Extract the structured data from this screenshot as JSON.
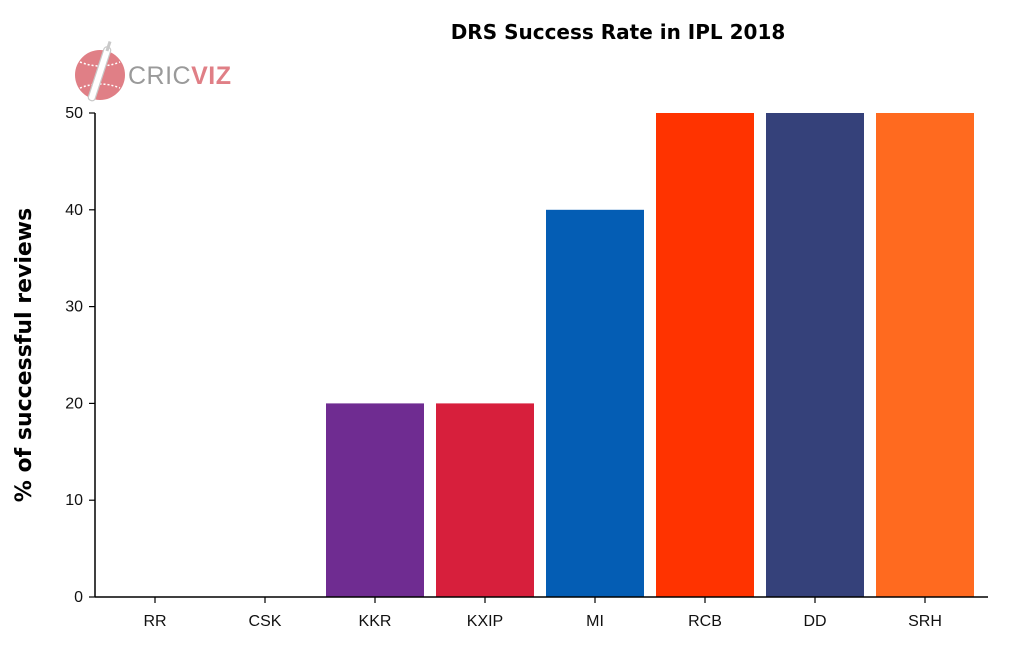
{
  "chart_data": {
    "type": "bar",
    "title": "DRS Success Rate in IPL 2018",
    "xlabel": "",
    "ylabel": "% of successful reviews",
    "ylim": [
      0,
      50
    ],
    "yticks": [
      0,
      10,
      20,
      30,
      40,
      50
    ],
    "categories": [
      "RR",
      "CSK",
      "KKR",
      "KXIP",
      "MI",
      "RCB",
      "DD",
      "SRH"
    ],
    "values": [
      0,
      0,
      20,
      20,
      40,
      50,
      50,
      50
    ],
    "colors": [
      "#f5a623",
      "#f9cd05",
      "#6f2c91",
      "#d71f3c",
      "#045db4",
      "#ff3300",
      "#35417a",
      "#ff6a1f"
    ],
    "grid": false,
    "legend": "none"
  },
  "branding": {
    "logo_text_part1": "CRIC",
    "logo_text_part2": "VIZ",
    "logo_color": "#e07f86",
    "logo_icon": "cricket-ball-bat-icon"
  }
}
